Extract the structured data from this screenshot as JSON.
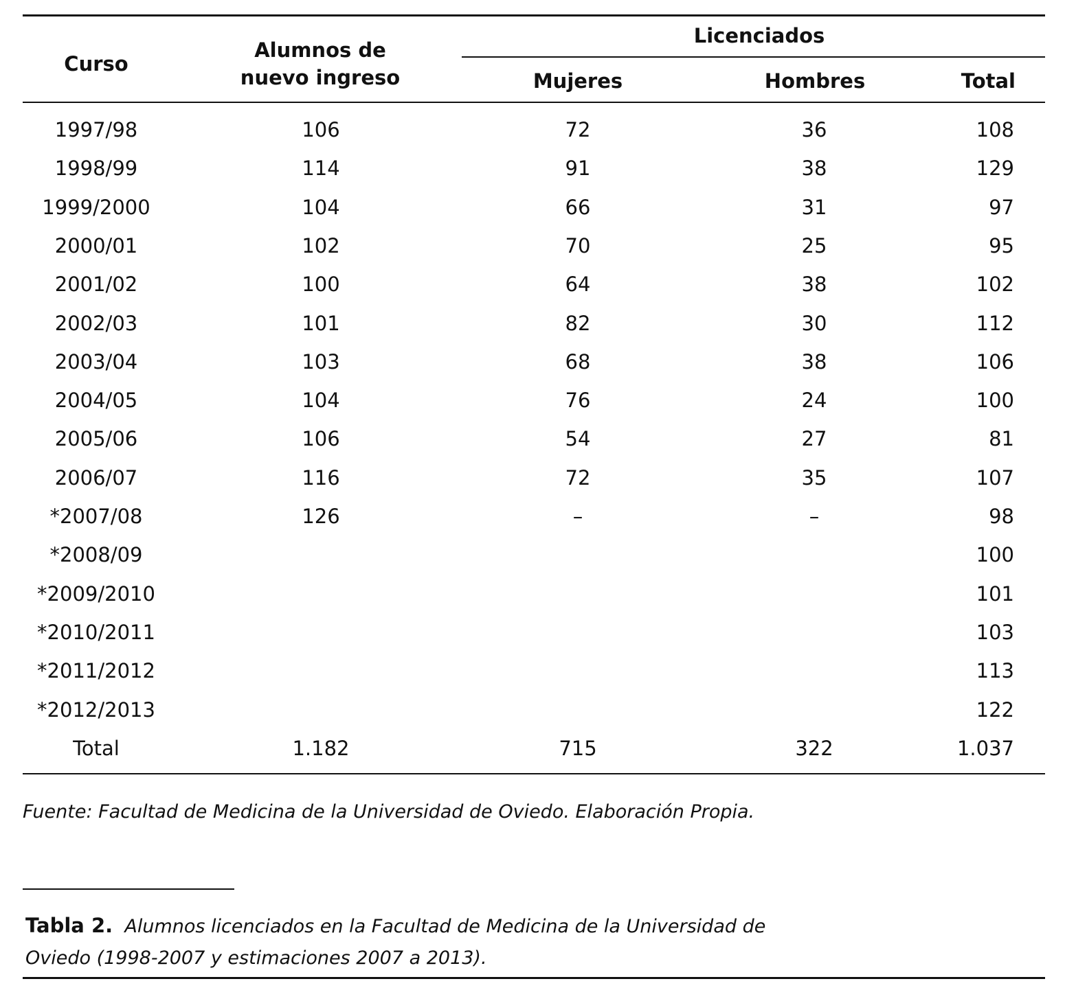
{
  "table": {
    "header": {
      "curso": "Curso",
      "alumnos": "Alumnos de nuevo ingreso",
      "group": "Licenciados",
      "mujeres": "Mujeres",
      "hombres": "Hombres",
      "total": "Total"
    },
    "rows": [
      {
        "curso": "1997/98",
        "alumnos": 106,
        "mujeres": 72,
        "hombres": 36,
        "total": 108
      },
      {
        "curso": "1998/99",
        "alumnos": 114,
        "mujeres": 91,
        "hombres": 38,
        "total": 129
      },
      {
        "curso": "1999/2000",
        "alumnos": 104,
        "mujeres": 66,
        "hombres": 31,
        "total": 97
      },
      {
        "curso": "2000/01",
        "alumnos": 102,
        "mujeres": 70,
        "hombres": 25,
        "total": 95
      },
      {
        "curso": "2001/02",
        "alumnos": 100,
        "mujeres": 64,
        "hombres": 38,
        "total": 102
      },
      {
        "curso": "2002/03",
        "alumnos": 101,
        "mujeres": 82,
        "hombres": 30,
        "total": 112
      },
      {
        "curso": "2003/04",
        "alumnos": 103,
        "mujeres": 68,
        "hombres": 38,
        "total": 106
      },
      {
        "curso": "2004/05",
        "alumnos": 104,
        "mujeres": 76,
        "hombres": 24,
        "total": 100
      },
      {
        "curso": "2005/06",
        "alumnos": 106,
        "mujeres": 54,
        "hombres": 27,
        "total": 81
      },
      {
        "curso": "2006/07",
        "alumnos": 116,
        "mujeres": 72,
        "hombres": 35,
        "total": 107
      },
      {
        "curso": "*2007/08",
        "alumnos": 126,
        "mujeres": "–",
        "hombres": "–",
        "total": 98
      },
      {
        "curso": "*2008/09",
        "total": 100
      },
      {
        "curso": "*2009/2010",
        "total": 101
      },
      {
        "curso": "*2010/2011",
        "total": 103
      },
      {
        "curso": "*2011/2012",
        "total": 113
      },
      {
        "curso": "*2012/2013",
        "total": 122
      },
      {
        "curso": "Total",
        "alumnos": "1.182",
        "mujeres": 715,
        "hombres": 322,
        "total": "1.037"
      }
    ]
  },
  "source": "Fuente: Facultad de Medicina de la Universidad de Oviedo. Elaboración Propia.",
  "caption": {
    "label": "Tabla 2.",
    "text": "Alumnos licenciados en la Facultad de Medicina de la Universidad de Oviedo (1998-2007 y estimaciones 2007 a 2013)."
  }
}
